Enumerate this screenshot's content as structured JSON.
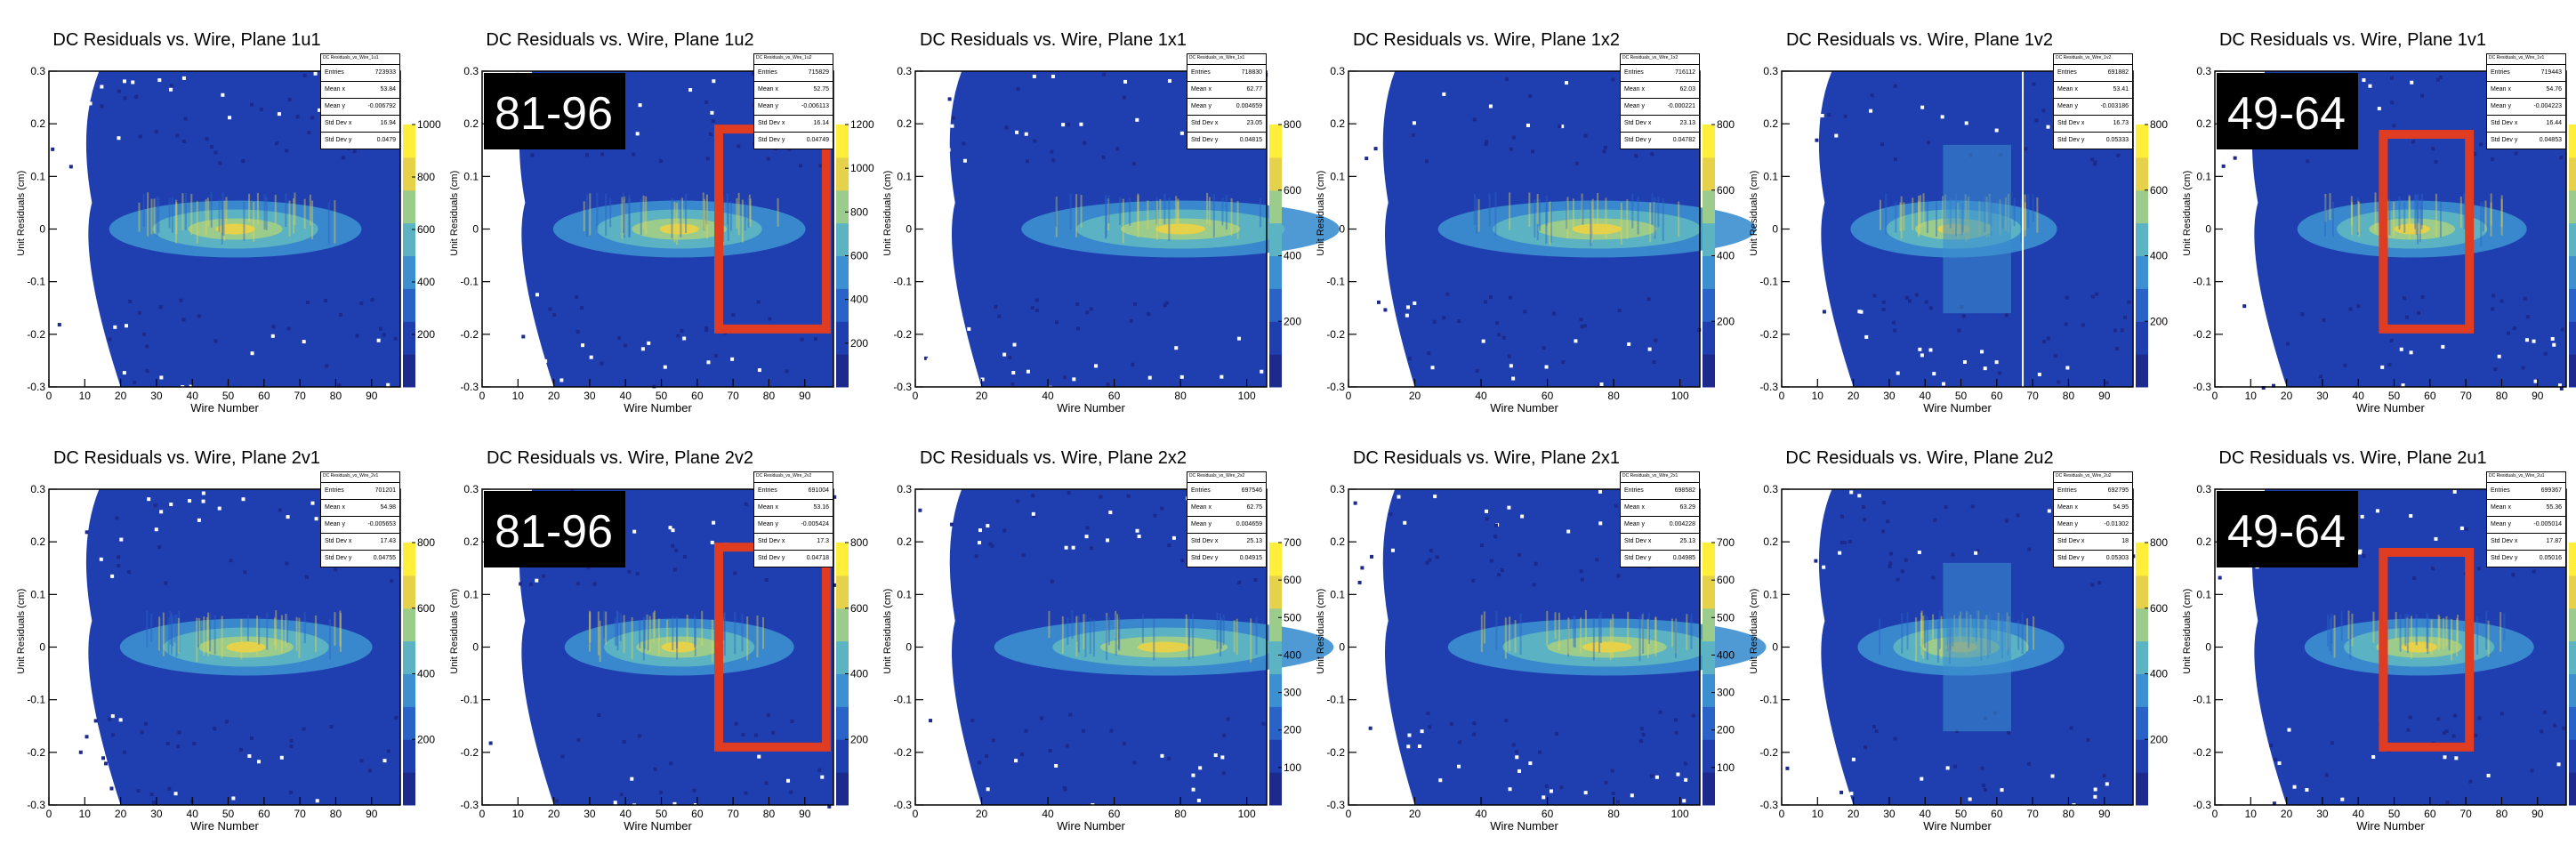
{
  "panels": [
    {
      "title": "DC Residuals vs. Wire, Plane 1u1",
      "stat_title": "DC Residuals_vs_Wire_1u1",
      "stats": [
        [
          "Entries",
          "723933"
        ],
        [
          "Mean x",
          "53.84"
        ],
        [
          "Mean y",
          "-0.006792"
        ],
        [
          "Std Dev x",
          "16.94"
        ],
        [
          "Std Dev y",
          "0.0479"
        ]
      ],
      "xmax": 98,
      "xticks": [
        0,
        10,
        20,
        30,
        40,
        50,
        60,
        70,
        80,
        90
      ],
      "center": 52,
      "spread": 22,
      "zticks": [
        200,
        400,
        600,
        800,
        1000
      ],
      "zcut": 1000,
      "overlay": null,
      "shadow": false
    },
    {
      "title": "DC Residuals vs. Wire, Plane 1u2",
      "stat_title": "DC Residuals_vs_Wire_1u2",
      "stats": [
        [
          "Entries",
          "715829"
        ],
        [
          "Mean x",
          "52.75"
        ],
        [
          "Mean y",
          "-0.006113"
        ],
        [
          "Std Dev x",
          "16.14"
        ],
        [
          "Std Dev y",
          "0.04749"
        ]
      ],
      "xmax": 98,
      "xticks": [
        0,
        10,
        20,
        30,
        40,
        50,
        60,
        70,
        80,
        90
      ],
      "center": 55,
      "spread": 22,
      "zticks": [
        200,
        400,
        600,
        800,
        1000,
        1200
      ],
      "zcut": 1200,
      "overlay": {
        "label": "81-96"
      },
      "shadow": false
    },
    {
      "title": "DC Residuals vs. Wire, Plane 1x1",
      "stat_title": "DC Residuals_vs_Wire_1x1",
      "stats": [
        [
          "Entries",
          "718830"
        ],
        [
          "Mean x",
          "62.77"
        ],
        [
          "Mean y",
          "0.004659"
        ],
        [
          "Std Dev x",
          "23.05"
        ],
        [
          "Std Dev y",
          "0.04815"
        ]
      ],
      "xmax": 106,
      "xticks": [
        0,
        20,
        40,
        60,
        80,
        100
      ],
      "center": 80,
      "spread": 30,
      "zticks": [
        200,
        400,
        600,
        800
      ],
      "zcut": 800,
      "overlay": null,
      "shadow": false
    },
    {
      "title": "DC Residuals vs. Wire, Plane 1x2",
      "stat_title": "DC Residuals_vs_Wire_1x2",
      "stats": [
        [
          "Entries",
          "716112"
        ],
        [
          "Mean x",
          "62.03"
        ],
        [
          "Mean y",
          "-0.000221"
        ],
        [
          "Std Dev x",
          "23.13"
        ],
        [
          "Std Dev y",
          "0.04782"
        ]
      ],
      "xmax": 106,
      "xticks": [
        0,
        20,
        40,
        60,
        80,
        100
      ],
      "center": 75,
      "spread": 30,
      "zticks": [
        200,
        400,
        600,
        800
      ],
      "zcut": 800,
      "overlay": null,
      "shadow": false
    },
    {
      "title": "DC Residuals vs. Wire, Plane 1v2",
      "stat_title": "DC Residuals_vs_Wire_1v2",
      "stats": [
        [
          "Entries",
          "691882"
        ],
        [
          "Mean x",
          "53.41"
        ],
        [
          "Mean y",
          "-0.003186"
        ],
        [
          "Std Dev x",
          "16.73"
        ],
        [
          "Std Dev y",
          "0.05333"
        ]
      ],
      "xmax": 98,
      "xticks": [
        0,
        10,
        20,
        30,
        40,
        50,
        60,
        70,
        80,
        90
      ],
      "center": 48,
      "spread": 18,
      "zticks": [
        200,
        400,
        600,
        800
      ],
      "zcut": 800,
      "overlay": null,
      "shadow": true
    },
    {
      "title": "DC Residuals vs. Wire, Plane 1v1",
      "stat_title": "DC Residuals_vs_Wire_1v1",
      "stats": [
        [
          "Entries",
          "719443"
        ],
        [
          "Mean x",
          "54.76"
        ],
        [
          "Mean y",
          "-0.004223"
        ],
        [
          "Std Dev x",
          "16.44"
        ],
        [
          "Std Dev y",
          "0.04853"
        ]
      ],
      "xmax": 98,
      "xticks": [
        0,
        10,
        20,
        30,
        40,
        50,
        60,
        70,
        80,
        90
      ],
      "center": 55,
      "spread": 20,
      "zticks": [
        200,
        400,
        600,
        800
      ],
      "zcut": 800,
      "overlay": {
        "label": "49-64"
      },
      "shadow": false
    },
    {
      "title": "DC Residuals vs. Wire, Plane 2v1",
      "stat_title": "DC Residuals_vs_Wire_2v1",
      "stats": [
        [
          "Entries",
          "701201"
        ],
        [
          "Mean x",
          "54.98"
        ],
        [
          "Mean y",
          "-0.005653"
        ],
        [
          "Std Dev x",
          "17.43"
        ],
        [
          "Std Dev y",
          "0.04755"
        ]
      ],
      "xmax": 98,
      "xticks": [
        0,
        10,
        20,
        30,
        40,
        50,
        60,
        70,
        80,
        90
      ],
      "center": 55,
      "spread": 22,
      "zticks": [
        200,
        400,
        600,
        800
      ],
      "zcut": 800,
      "overlay": null,
      "shadow": false
    },
    {
      "title": "DC Residuals vs. Wire, Plane 2v2",
      "stat_title": "DC Residuals_vs_Wire_2v2",
      "stats": [
        [
          "Entries",
          "691004"
        ],
        [
          "Mean x",
          "53.16"
        ],
        [
          "Mean y",
          "-0.005424"
        ],
        [
          "Std Dev x",
          "17.3"
        ],
        [
          "Std Dev y",
          "0.04718"
        ]
      ],
      "xmax": 98,
      "xticks": [
        0,
        10,
        20,
        30,
        40,
        50,
        60,
        70,
        80,
        90
      ],
      "center": 55,
      "spread": 20,
      "zticks": [
        200,
        400,
        600,
        800
      ],
      "zcut": 800,
      "overlay": {
        "label": "81-96"
      },
      "shadow": false
    },
    {
      "title": "DC Residuals vs. Wire, Plane 2x2",
      "stat_title": "DC Residuals_vs_Wire_2x2",
      "stats": [
        [
          "Entries",
          "697546"
        ],
        [
          "Mean x",
          "62.75"
        ],
        [
          "Mean y",
          "0.004659"
        ],
        [
          "Std Dev x",
          "25.13"
        ],
        [
          "Std Dev y",
          "0.04915"
        ]
      ],
      "xmax": 106,
      "xticks": [
        0,
        20,
        40,
        60,
        80,
        100
      ],
      "center": 75,
      "spread": 32,
      "zticks": [
        100,
        200,
        300,
        400,
        500,
        600,
        700
      ],
      "zcut": 700,
      "overlay": null,
      "shadow": false
    },
    {
      "title": "DC Residuals vs. Wire, Plane 2x1",
      "stat_title": "DC Residuals_vs_Wire_2x1",
      "stats": [
        [
          "Entries",
          "698582"
        ],
        [
          "Mean x",
          "63.29"
        ],
        [
          "Mean y",
          "0.004228"
        ],
        [
          "Std Dev x",
          "25.13"
        ],
        [
          "Std Dev y",
          "0.04985"
        ]
      ],
      "xmax": 106,
      "xticks": [
        0,
        20,
        40,
        60,
        80,
        100
      ],
      "center": 78,
      "spread": 30,
      "zticks": [
        100,
        200,
        300,
        400,
        500,
        600,
        700
      ],
      "zcut": 700,
      "overlay": null,
      "shadow": false
    },
    {
      "title": "DC Residuals vs. Wire, Plane 2u2",
      "stat_title": "DC Residuals_vs_Wire_2u2",
      "stats": [
        [
          "Entries",
          "692795"
        ],
        [
          "Mean x",
          "54.95"
        ],
        [
          "Mean y",
          "-0.01302"
        ],
        [
          "Std Dev x",
          "18"
        ],
        [
          "Std Dev y",
          "0.05303"
        ]
      ],
      "xmax": 98,
      "xticks": [
        0,
        10,
        20,
        30,
        40,
        50,
        60,
        70,
        80,
        90
      ],
      "center": 50,
      "spread": 18,
      "zticks": [
        200,
        400,
        600,
        800
      ],
      "zcut": 800,
      "overlay": null,
      "shadow": true
    },
    {
      "title": "DC Residuals vs. Wire, Plane 2u1",
      "stat_title": "DC Residuals_vs_Wire_2u1",
      "stats": [
        [
          "Entries",
          "699367"
        ],
        [
          "Mean x",
          "55.36"
        ],
        [
          "Mean y",
          "-0.005014"
        ],
        [
          "Std Dev x",
          "17.87"
        ],
        [
          "Std Dev y",
          "0.05016"
        ]
      ],
      "xmax": 98,
      "xticks": [
        0,
        10,
        20,
        30,
        40,
        50,
        60,
        70,
        80,
        90
      ],
      "center": 57,
      "spread": 20,
      "zticks": [
        200,
        400,
        600,
        800
      ],
      "zcut": 800,
      "overlay": {
        "label": "49-64"
      },
      "shadow": false
    }
  ],
  "axes": {
    "xlabel": "Wire Number",
    "ylabel": "Unit Residuals (cm)",
    "ylim": [
      -0.3,
      0.3
    ],
    "yticks": [
      "-0.3",
      "-0.2",
      "-0.1",
      "0",
      "0.1",
      "0.2",
      "0.3"
    ]
  },
  "colors": {
    "palette": [
      "#1b2a8c",
      "#1f3fb0",
      "#2a63c8",
      "#3c8fd0",
      "#5cb4c2",
      "#9ccc8c",
      "#e6d24a",
      "#ffef3a"
    ]
  },
  "chart_data": {
    "type": "heatmap",
    "x_axis": "Wire Number",
    "y_axis": "Unit Residuals (cm)",
    "y_range": [
      -0.3,
      0.3
    ],
    "planes": [
      "1u1",
      "1u2",
      "1x1",
      "1x2",
      "1v2",
      "1v1",
      "2v1",
      "2v2",
      "2x2",
      "2x1",
      "2u2",
      "2u1"
    ],
    "highlighted_wire_ranges": {
      "1u2": "81-96",
      "1v1": "49-64",
      "2v2": "81-96",
      "2u1": "49-64"
    }
  }
}
